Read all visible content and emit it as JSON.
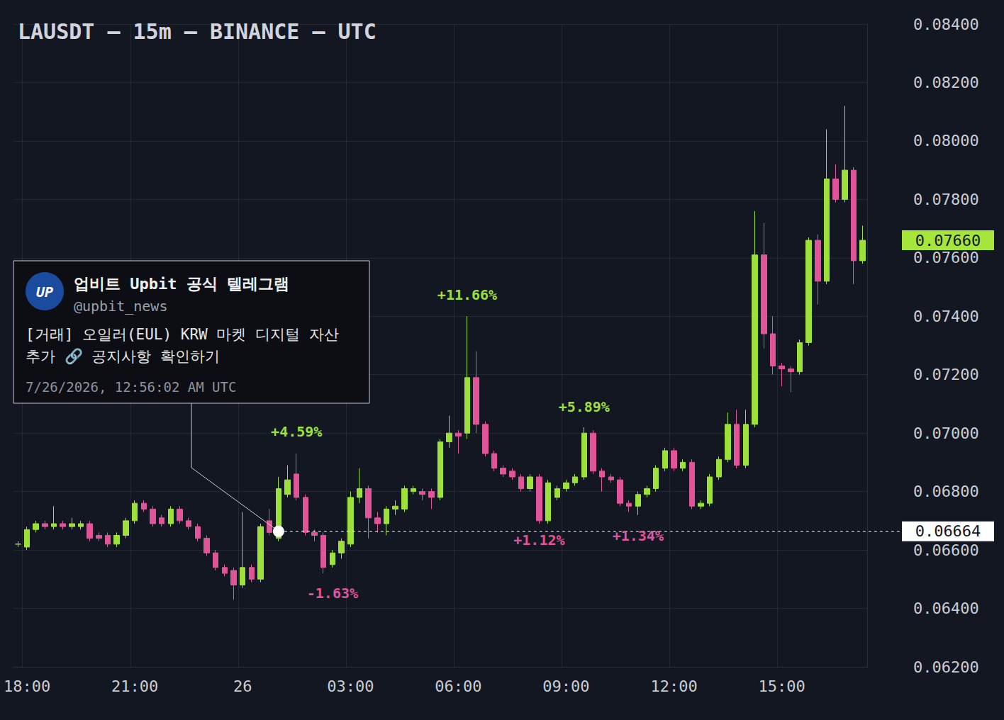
{
  "chart_data": {
    "type": "candlestick",
    "title": "LAUSDT — 15m — BINANCE — UTC",
    "categories": [
      null,
      "18:00",
      null,
      null,
      null,
      null,
      null,
      null,
      null,
      null,
      null,
      null,
      null,
      "21:00",
      null,
      null,
      null,
      null,
      null,
      null,
      null,
      null,
      null,
      null,
      null,
      "26",
      null,
      null,
      null,
      null,
      null,
      null,
      null,
      null,
      null,
      null,
      null,
      "03:00",
      null,
      null,
      null,
      null,
      null,
      null,
      null,
      null,
      null,
      null,
      null,
      "06:00",
      null,
      null,
      null,
      null,
      null,
      null,
      null,
      null,
      null,
      null,
      null,
      "09:00",
      null,
      null,
      null,
      null,
      null,
      null,
      null,
      null,
      null,
      null,
      null,
      "12:00",
      null,
      null,
      null,
      null,
      null,
      null,
      null,
      null,
      null,
      null,
      null,
      "15:00",
      null,
      null,
      null,
      null,
      null,
      null,
      null,
      null,
      null
    ],
    "open": [
      0.0662,
      0.0661,
      0.0667,
      0.0669,
      0.0668,
      0.0669,
      0.0668,
      0.0668,
      0.0669,
      0.0665,
      0.0665,
      0.0662,
      0.0665,
      0.067,
      0.0676,
      0.0674,
      0.0671,
      0.0669,
      0.0674,
      0.067,
      0.0668,
      0.0664,
      0.0659,
      0.0654,
      0.0653,
      0.0648,
      0.0654,
      0.065,
      0.067,
      0.0664,
      0.0679,
      0.0686,
      0.0678,
      0.0666,
      0.0665,
      0.0655,
      0.0659,
      0.0662,
      0.0678,
      0.0681,
      0.0671,
      0.0669,
      0.0674,
      0.0674,
      0.068,
      0.068,
      0.068,
      0.0678,
      0.0697,
      0.07,
      0.07,
      0.0719,
      0.0703,
      0.0693,
      0.0688,
      0.0687,
      0.0685,
      0.0681,
      0.0685,
      0.067,
      0.0678,
      0.0681,
      0.0683,
      0.0685,
      0.07,
      0.0687,
      0.0685,
      0.0684,
      0.0676,
      0.0675,
      0.0679,
      0.0681,
      0.0688,
      0.0694,
      0.0688,
      0.069,
      0.0675,
      0.0676,
      0.0685,
      0.0691,
      0.0703,
      0.0689,
      0.0703,
      0.0761,
      0.0734,
      0.0723,
      0.0722,
      0.0721,
      0.0731,
      0.0766,
      0.0752,
      0.0787,
      0.078,
      0.079,
      0.0759
    ],
    "close": [
      0.0662,
      0.0667,
      0.0669,
      0.0668,
      0.0669,
      0.0668,
      0.0669,
      0.0669,
      0.0664,
      0.0664,
      0.0662,
      0.0665,
      0.067,
      0.0676,
      0.0674,
      0.0669,
      0.0669,
      0.0674,
      0.067,
      0.0668,
      0.0664,
      0.0659,
      0.0654,
      0.0652,
      0.0648,
      0.0654,
      0.065,
      0.0668,
      0.0666,
      0.0681,
      0.0684,
      0.0678,
      0.0666,
      0.0665,
      0.0654,
      0.0659,
      0.0663,
      0.0678,
      0.0681,
      0.0671,
      0.0669,
      0.0674,
      0.0675,
      0.0681,
      0.0681,
      0.0679,
      0.0678,
      0.0697,
      0.07,
      0.0699,
      0.0719,
      0.0703,
      0.0693,
      0.0688,
      0.0686,
      0.0685,
      0.0681,
      0.0685,
      0.067,
      0.0683,
      0.0681,
      0.0683,
      0.0685,
      0.07,
      0.0687,
      0.0685,
      0.0684,
      0.0676,
      0.0675,
      0.0679,
      0.0681,
      0.0688,
      0.0694,
      0.0688,
      0.069,
      0.0675,
      0.0676,
      0.0685,
      0.0691,
      0.0703,
      0.0689,
      0.0703,
      0.0761,
      0.0734,
      0.0723,
      0.0722,
      0.0721,
      0.0731,
      0.0766,
      0.0752,
      0.0787,
      0.078,
      0.079,
      0.0759,
      0.0766
    ],
    "low": [
      0.0661,
      0.066,
      0.0666,
      0.0667,
      0.0667,
      0.0667,
      0.0667,
      0.0667,
      0.0663,
      0.0663,
      0.0661,
      0.0661,
      0.0664,
      0.0669,
      0.0673,
      0.0668,
      0.0668,
      0.0668,
      0.0669,
      0.0667,
      0.0663,
      0.0658,
      0.0653,
      0.0651,
      0.0643,
      0.0647,
      0.0649,
      0.0649,
      0.0665,
      0.0663,
      0.0678,
      0.0677,
      0.0665,
      0.0663,
      0.0652,
      0.0654,
      0.0657,
      0.0661,
      0.0676,
      0.0664,
      0.0666,
      0.0665,
      0.0672,
      0.0673,
      0.0679,
      0.0677,
      0.0674,
      0.0677,
      0.0695,
      0.0693,
      0.0698,
      0.07,
      0.0692,
      0.0687,
      0.0685,
      0.0684,
      0.068,
      0.068,
      0.0669,
      0.0669,
      0.0677,
      0.068,
      0.0682,
      0.0684,
      0.0686,
      0.068,
      0.0683,
      0.0675,
      0.0673,
      0.0672,
      0.0678,
      0.068,
      0.0687,
      0.0687,
      0.0687,
      0.0674,
      0.0674,
      0.0675,
      0.0684,
      0.069,
      0.0688,
      0.0688,
      0.0702,
      0.0729,
      0.072,
      0.0716,
      0.0714,
      0.072,
      0.073,
      0.0744,
      0.0751,
      0.0779,
      0.0779,
      0.0751,
      0.0758
    ],
    "high": [
      0.0663,
      0.0668,
      0.067,
      0.067,
      0.0675,
      0.067,
      0.0671,
      0.067,
      0.067,
      0.0666,
      0.0666,
      0.0666,
      0.0671,
      0.0677,
      0.0677,
      0.0675,
      0.0672,
      0.0675,
      0.0675,
      0.0671,
      0.0669,
      0.0665,
      0.066,
      0.0655,
      0.0654,
      0.0673,
      0.0655,
      0.0669,
      0.0674,
      0.0685,
      0.0689,
      0.0693,
      0.0679,
      0.0667,
      0.0666,
      0.066,
      0.0664,
      0.068,
      0.0688,
      0.0682,
      0.0673,
      0.0675,
      0.0677,
      0.0682,
      0.0682,
      0.0681,
      0.0681,
      0.0698,
      0.0706,
      0.0701,
      0.074,
      0.0728,
      0.0704,
      0.0694,
      0.0689,
      0.0688,
      0.0686,
      0.0686,
      0.0686,
      0.0684,
      0.0682,
      0.0684,
      0.0686,
      0.0702,
      0.0701,
      0.0688,
      0.0686,
      0.0685,
      0.0677,
      0.068,
      0.0682,
      0.0689,
      0.0695,
      0.0695,
      0.0691,
      0.0691,
      0.0677,
      0.0686,
      0.0692,
      0.0707,
      0.0708,
      0.0708,
      0.0776,
      0.0772,
      0.074,
      0.0724,
      0.0723,
      0.0732,
      0.0767,
      0.0768,
      0.0804,
      0.0792,
      0.0812,
      0.0791,
      0.0771
    ],
    "color": {
      "up": "#9de03a",
      "down": "#e0559a"
    },
    "ylim": [
      0.062,
      0.084
    ],
    "yticks": [
      {
        "value": 0.062,
        "label": "0.06200"
      },
      {
        "value": 0.064,
        "label": "0.06400"
      },
      {
        "value": 0.066,
        "label": "0.06600"
      },
      {
        "value": 0.068,
        "label": "0.06800"
      },
      {
        "value": 0.07,
        "label": "0.07000"
      },
      {
        "value": 0.072,
        "label": "0.07200"
      },
      {
        "value": 0.074,
        "label": "0.07400"
      },
      {
        "value": 0.076,
        "label": "0.07600"
      },
      {
        "value": 0.078,
        "label": "0.07800"
      },
      {
        "value": 0.08,
        "label": "0.08000"
      },
      {
        "value": 0.082,
        "label": "0.08200"
      },
      {
        "value": 0.084,
        "label": "0.08400"
      }
    ],
    "grid": true,
    "annotations": [
      {
        "text": "+4.59%",
        "x_index": 31,
        "y": 0.07005,
        "color": "#9de03a"
      },
      {
        "text": "-1.63%",
        "x_index": 35,
        "y": 0.06452,
        "color": "#e0559a"
      },
      {
        "text": "+11.66%",
        "x_index": 50,
        "y": 0.07473,
        "color": "#9de03a"
      },
      {
        "text": "+1.12%",
        "x_index": 58,
        "y": 0.06634,
        "color": "#e0559a"
      },
      {
        "text": "+5.89%",
        "x_index": 63,
        "y": 0.0709,
        "color": "#9de03a"
      },
      {
        "text": "+1.34%",
        "x_index": 69,
        "y": 0.06649,
        "color": "#e0559a"
      }
    ],
    "price_lines": [
      {
        "value": 0.0766,
        "label": "0.07660",
        "color": "#a6e63a"
      },
      {
        "value": 0.06664,
        "label": "0.06664",
        "color": "#ffffff",
        "line_style": "dashed",
        "start_index": 29
      }
    ],
    "event": {
      "x_index": 29,
      "y": 0.06664,
      "logo": "UP",
      "source": "업비트 Upbit 공식 텔레그램",
      "handle": "@upbit_news",
      "message": [
        "[거래] 오일러(EUL) KRW 마켓 디지털 자산",
        "추가 🔗 공지사항 확인하기"
      ],
      "timestamp": "7/26/2026, 12:56:02 AM UTC"
    }
  }
}
